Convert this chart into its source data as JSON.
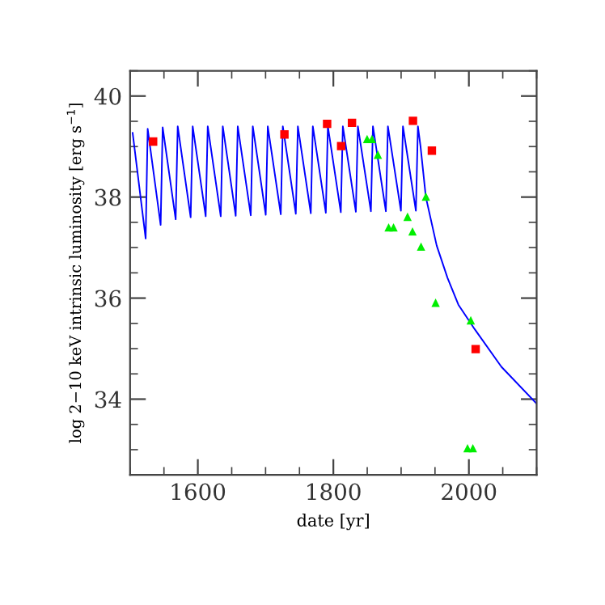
{
  "chart_data": {
    "type": "line",
    "xlabel": "date [yr]",
    "ylabel": "log 2−10 keV intrinsic luminosity [erg s$^{−1}$]",
    "xlim": [
      1500,
      2100
    ],
    "ylim": [
      32.5,
      40.5
    ],
    "xticks": [
      1600,
      1800,
      2000
    ],
    "yticks": [
      34,
      36,
      38,
      40
    ],
    "grid": false,
    "legend": false,
    "series": [
      {
        "color": "#0000ff",
        "marker": "none",
        "line_style": "solid",
        "x": [
          1503.8,
          1523,
          1526.0,
          1545.1,
          1548.1,
          1567.3,
          1570.3,
          1589.4,
          1592.4,
          1611.6,
          1614.6,
          1633.8,
          1636.8,
          1655.9,
          1658.9,
          1678.1,
          1681.1,
          1700.2,
          1703.2,
          1722.4,
          1725.4,
          1744.6,
          1747.6,
          1766.7,
          1769.7,
          1788.9,
          1791.9,
          1811.0,
          1814.0,
          1833.2,
          1836.2,
          1855.4,
          1858.4,
          1877.5,
          1880.5,
          1899.7,
          1902.7,
          1921.8,
          1924.8,
          1928.6,
          1936.5,
          1952.5,
          1968.5,
          1984.5,
          2002.8,
          2008.3,
          2048,
          2100
        ],
        "values": [
          39.27,
          37.18,
          39.35,
          37.45,
          39.38,
          37.56,
          39.4,
          37.6,
          39.4,
          37.62,
          39.4,
          37.62,
          39.4,
          37.63,
          39.4,
          37.64,
          39.4,
          37.65,
          39.4,
          37.66,
          39.4,
          37.67,
          39.4,
          37.68,
          39.4,
          37.69,
          39.4,
          37.7,
          39.4,
          37.71,
          39.4,
          37.72,
          39.4,
          37.72,
          39.4,
          37.73,
          39.4,
          37.73,
          39.4,
          39.01,
          38.0,
          37.04,
          36.4,
          35.87,
          35.5,
          35.39,
          34.64,
          33.91
        ]
      },
      {
        "type": "scatter",
        "color": "#ff0000",
        "marker": "square",
        "x": [
          1534,
          1727.8,
          1790.8,
          1811.5,
          1827.5,
          1917.5,
          1945.4,
          2010
        ],
        "values": [
          39.1,
          39.24,
          39.45,
          39.01,
          39.47,
          39.51,
          38.92,
          34.99
        ]
      },
      {
        "type": "scatter",
        "color": "#00ee00",
        "marker": "triangle",
        "x": [
          1849.8,
          1857,
          1865.7,
          1881.6,
          1888.8,
          1909.5,
          1916.8,
          1929.4,
          1936.6,
          1950.9,
          2002.8,
          1998,
          2005.9
        ],
        "values": [
          39.15,
          39.15,
          38.84,
          37.4,
          37.4,
          37.61,
          37.32,
          37.02,
          38.01,
          35.91,
          35.56,
          33.03,
          33.03
        ]
      }
    ]
  }
}
